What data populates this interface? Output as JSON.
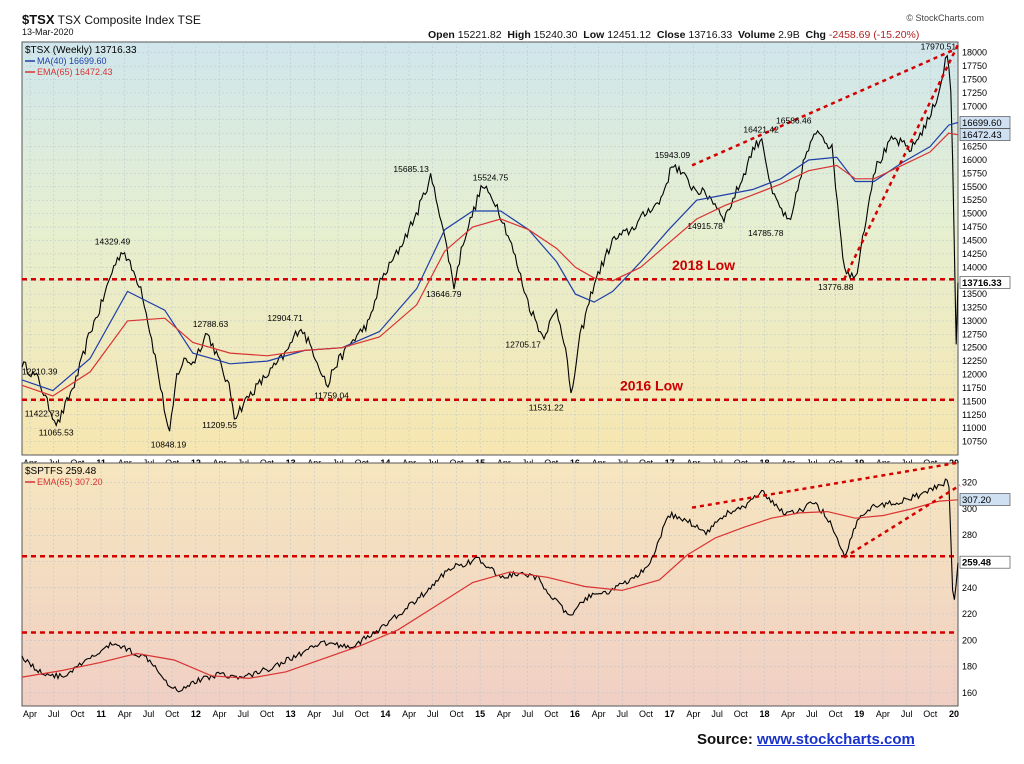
{
  "header": {
    "symbol": "$TSX",
    "name": "TSX Composite Index",
    "exchange": "TSE",
    "date": "13-Mar-2020",
    "brand": "© StockCharts.com",
    "open_label": "Open",
    "open": "15221.82",
    "high_label": "High",
    "high": "15240.30",
    "low_label": "Low",
    "low": "12451.12",
    "close_label": "Close",
    "close": "13716.33",
    "volume_label": "Volume",
    "volume": "2.9B",
    "chg_label": "Chg",
    "chg": "-2458.69 (-15.20%)"
  },
  "source": {
    "label": "Source:",
    "url": "www.stockcharts.com"
  },
  "colors": {
    "price_line": "#000000",
    "ma_line": "#1f3fa8",
    "ema_line": "#d93333",
    "support_line": "#d40000",
    "price_label_bg": "#cfe0f2"
  },
  "chart_data": [
    {
      "type": "line",
      "title": "$TSX (Weekly) 13716.33",
      "legend_placement": "top-left",
      "ylim": [
        10500,
        18200
      ],
      "y_ticks": [
        10750,
        11000,
        11250,
        11500,
        11750,
        12000,
        12250,
        12500,
        12750,
        13000,
        13250,
        13500,
        13750,
        14000,
        14250,
        14500,
        14750,
        15000,
        15250,
        15500,
        15750,
        16000,
        16250,
        16500,
        16750,
        17000,
        17250,
        17500,
        17750,
        18000
      ],
      "x_ticks": [
        "Apr",
        "Jul",
        "Oct",
        "11",
        "Apr",
        "Jul",
        "Oct",
        "12",
        "Apr",
        "Jul",
        "Oct",
        "13",
        "Apr",
        "Jul",
        "Oct",
        "14",
        "Apr",
        "Jul",
        "Oct",
        "15",
        "Apr",
        "Jul",
        "Oct",
        "16",
        "Apr",
        "Jul",
        "Oct",
        "17",
        "Apr",
        "Jul",
        "Oct",
        "18",
        "Apr",
        "Jul",
        "Oct",
        "19",
        "Apr",
        "Jul",
        "Oct",
        "20"
      ],
      "x_range": [
        2010.17,
        2020.2
      ],
      "series": [
        {
          "name": "$TSX (Weekly) 13716.33",
          "kind": "price",
          "x": [
            2010.17,
            2010.35,
            2010.45,
            2010.55,
            2010.75,
            2010.9,
            2011.0,
            2011.15,
            2011.25,
            2011.45,
            2011.6,
            2011.75,
            2011.83,
            2011.92,
            2012.0,
            2012.15,
            2012.25,
            2012.4,
            2012.45,
            2012.6,
            2012.8,
            2012.9,
            2013.0,
            2013.15,
            2013.3,
            2013.45,
            2013.5,
            2013.7,
            2013.9,
            2014.0,
            2014.2,
            2014.4,
            2014.55,
            2014.65,
            2014.8,
            2014.9,
            2015.0,
            2015.1,
            2015.25,
            2015.4,
            2015.6,
            2015.75,
            2015.9,
            2016.0,
            2016.05,
            2016.15,
            2016.3,
            2016.5,
            2016.7,
            2016.9,
            2017.0,
            2017.15,
            2017.35,
            2017.55,
            2017.7,
            2017.9,
            2018.0,
            2018.1,
            2018.2,
            2018.4,
            2018.55,
            2018.7,
            2018.85,
            2018.98,
            2019.1,
            2019.3,
            2019.5,
            2019.7,
            2019.9,
            2020.0,
            2020.08,
            2020.12,
            2020.15,
            2020.18,
            2020.2
          ],
          "values": [
            12210,
            11900,
            11423,
            11065,
            11900,
            12800,
            13200,
            14000,
            14329,
            13600,
            12300,
            10848,
            12000,
            12300,
            12200,
            12788,
            12400,
            11700,
            11210,
            11600,
            12000,
            12200,
            12400,
            12905,
            12400,
            11759,
            12100,
            12600,
            13000,
            13700,
            14300,
            15000,
            15685,
            15000,
            13647,
            14500,
            15000,
            15525,
            15200,
            14500,
            13300,
            12705,
            13200,
            12500,
            11531,
            12700,
            13700,
            14500,
            14700,
            15100,
            15200,
            15943,
            15500,
            15300,
            14916,
            15700,
            16200,
            16421,
            15400,
            14786,
            16000,
            16586,
            16200,
            14000,
            13777,
            15800,
            16400,
            16200,
            16800,
            17300,
            17970,
            17500,
            15500,
            12451,
            13716
          ]
        },
        {
          "name": "MA(40) 16699.60",
          "kind": "ma",
          "x": [
            2010.17,
            2010.5,
            2010.9,
            2011.3,
            2011.7,
            2012.0,
            2012.4,
            2012.8,
            2013.2,
            2013.6,
            2014.0,
            2014.4,
            2014.7,
            2015.0,
            2015.3,
            2015.6,
            2015.9,
            2016.1,
            2016.3,
            2016.5,
            2016.8,
            2017.1,
            2017.4,
            2017.7,
            2018.0,
            2018.3,
            2018.6,
            2018.9,
            2019.1,
            2019.3,
            2019.6,
            2019.9,
            2020.1,
            2020.2
          ],
          "values": [
            11900,
            11700,
            12300,
            13550,
            13200,
            12400,
            12200,
            12250,
            12450,
            12500,
            12800,
            13600,
            14700,
            15050,
            15050,
            14700,
            14100,
            13500,
            13350,
            13550,
            14100,
            14700,
            15250,
            15350,
            15450,
            15650,
            16000,
            16050,
            15600,
            15600,
            15950,
            16250,
            16650,
            16700
          ]
        },
        {
          "name": "EMA(65) 16472.43",
          "kind": "ema",
          "x": [
            2010.17,
            2010.5,
            2010.9,
            2011.3,
            2011.7,
            2012.0,
            2012.4,
            2012.8,
            2013.2,
            2013.6,
            2014.0,
            2014.4,
            2014.7,
            2015.0,
            2015.3,
            2015.6,
            2015.9,
            2016.1,
            2016.3,
            2016.5,
            2016.8,
            2017.1,
            2017.4,
            2017.7,
            2018.0,
            2018.3,
            2018.6,
            2018.9,
            2019.1,
            2019.3,
            2019.6,
            2019.9,
            2020.1,
            2020.2
          ],
          "values": [
            11800,
            11600,
            12050,
            13000,
            13050,
            12600,
            12400,
            12350,
            12450,
            12500,
            12700,
            13300,
            14300,
            14750,
            14900,
            14700,
            14350,
            14000,
            13800,
            13750,
            14000,
            14450,
            14900,
            15150,
            15350,
            15550,
            15800,
            15900,
            15650,
            15650,
            15900,
            16150,
            16500,
            16472
          ]
        }
      ],
      "annotations": [
        "12210.39",
        "11422.73",
        "11065.53",
        "14329.49",
        "10848.19",
        "12788.63",
        "11209.55",
        "12904.71",
        "11759.04",
        "15685.13",
        "13646.79",
        "15524.75",
        "12705.17",
        "11531.22",
        "15943.09",
        "14915.78",
        "16421.42",
        "14785.78",
        "16586.46",
        "13776.88",
        "17970.51"
      ],
      "horizontal_lines": [
        {
          "label": "2018 Low",
          "value": 13776.88
        },
        {
          "label": "2016 Low",
          "value": 11531.22
        }
      ],
      "price_labels": [
        "16699.60",
        "16472.43",
        "13716.33"
      ],
      "trendlines": [
        {
          "x": [
            2017.35,
            2020.15
          ],
          "values": [
            15900,
            18050
          ]
        },
        {
          "x": [
            2018.98,
            2020.2
          ],
          "values": [
            13777,
            18150
          ]
        }
      ]
    },
    {
      "type": "line",
      "title": "$SPTFS 259.48",
      "legend_placement": "top-left",
      "ylim": [
        150,
        335
      ],
      "y_ticks": [
        160,
        180,
        200,
        220,
        240,
        260,
        280,
        300,
        320
      ],
      "x_ticks": [
        "Apr",
        "Jul",
        "Oct",
        "11",
        "Apr",
        "Jul",
        "Oct",
        "12",
        "Apr",
        "Jul",
        "Oct",
        "13",
        "Apr",
        "Jul",
        "Oct",
        "14",
        "Apr",
        "Jul",
        "Oct",
        "15",
        "Apr",
        "Jul",
        "Oct",
        "16",
        "Apr",
        "Jul",
        "Oct",
        "17",
        "Apr",
        "Jul",
        "Oct",
        "18",
        "Apr",
        "Jul",
        "Oct",
        "19",
        "Apr",
        "Jul",
        "Oct",
        "20"
      ],
      "x_range": [
        2010.17,
        2020.2
      ],
      "series": [
        {
          "name": "$SPTFS 259.48",
          "kind": "price",
          "x": [
            2010.17,
            2010.35,
            2010.6,
            2010.9,
            2011.15,
            2011.3,
            2011.55,
            2011.75,
            2011.85,
            2012.0,
            2012.3,
            2012.5,
            2012.8,
            2013.1,
            2013.4,
            2013.7,
            2014.0,
            2014.3,
            2014.55,
            2014.75,
            2014.9,
            2015.05,
            2015.3,
            2015.5,
            2015.7,
            2015.9,
            2016.05,
            2016.2,
            2016.45,
            2016.7,
            2016.9,
            2017.1,
            2017.3,
            2017.5,
            2017.7,
            2017.9,
            2018.1,
            2018.2,
            2018.35,
            2018.5,
            2018.65,
            2018.8,
            2018.98,
            2019.15,
            2019.3,
            2019.6,
            2019.85,
            2020.05,
            2020.1,
            2020.15,
            2020.2
          ],
          "values": [
            188,
            176,
            172,
            186,
            198,
            193,
            185,
            166,
            162,
            168,
            175,
            171,
            178,
            188,
            198,
            195,
            208,
            225,
            240,
            255,
            258,
            262,
            248,
            251,
            247,
            229,
            217,
            232,
            237,
            246,
            257,
            296,
            291,
            282,
            296,
            301,
            313,
            305,
            297,
            298,
            305,
            294,
            263,
            296,
            302,
            306,
            312,
            320,
            325,
            220,
            259
          ]
        },
        {
          "name": "EMA(65) 307.20",
          "kind": "ema",
          "x": [
            2010.17,
            2010.6,
            2011.0,
            2011.4,
            2011.8,
            2012.2,
            2012.6,
            2013.0,
            2013.4,
            2013.8,
            2014.2,
            2014.6,
            2015.0,
            2015.4,
            2015.8,
            2016.2,
            2016.6,
            2017.0,
            2017.3,
            2017.6,
            2017.9,
            2018.2,
            2018.5,
            2018.8,
            2019.1,
            2019.4,
            2019.7,
            2020.0,
            2020.2
          ],
          "values": [
            172,
            177,
            183,
            190,
            185,
            173,
            171,
            176,
            186,
            196,
            208,
            226,
            244,
            252,
            248,
            241,
            238,
            246,
            265,
            278,
            286,
            293,
            297,
            298,
            293,
            295,
            300,
            306,
            307
          ]
        }
      ],
      "horizontal_lines": [
        {
          "label": "",
          "value": 264
        },
        {
          "label": "",
          "value": 206
        }
      ],
      "price_labels": [
        "307.20",
        "259.48"
      ],
      "trendlines": [
        {
          "x": [
            2017.35,
            2020.18
          ],
          "values": [
            301,
            335
          ]
        },
        {
          "x": [
            2018.98,
            2020.22
          ],
          "values": [
            263,
            318
          ]
        }
      ]
    }
  ]
}
